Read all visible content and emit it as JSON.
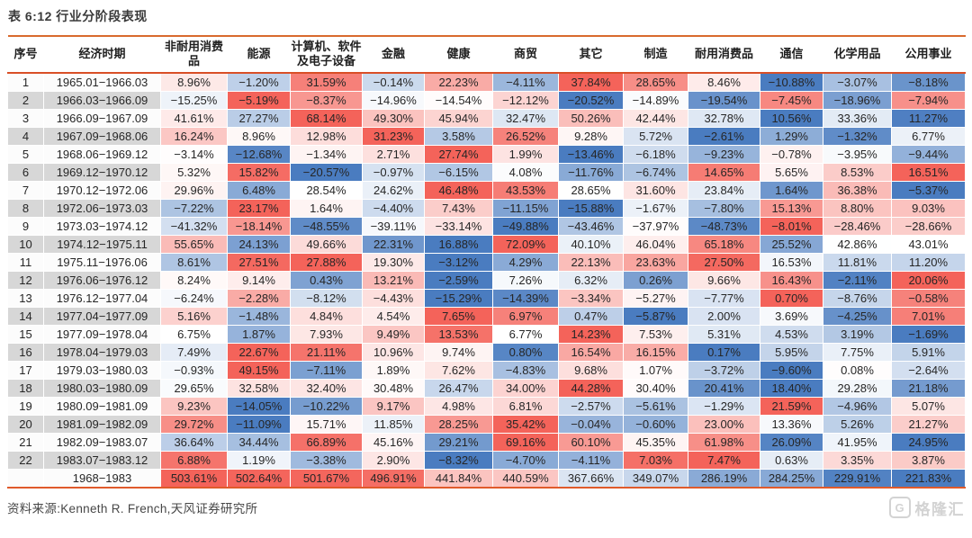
{
  "page_title": "表 6:12 行业分阶段表现",
  "source_note": "资料来源:Kenneth R. French,天风证券研究所",
  "logo_text": "格隆汇",
  "colors": {
    "heat_max_red": "#F4635A",
    "heat_min_blue": "#4A7CC0",
    "heat_mid_white": "#FFFFFF",
    "stripe_gray": "#D7D7D7",
    "rule_orange": "#D96A2E",
    "rule_header_underline": "#D94F27",
    "title_text": "#3A3A3A"
  },
  "chart_data": {
    "type": "heatmap",
    "title": "表 6:12 行业分阶段表现",
    "unit": "%",
    "color_scale": "per-row diverging: row min = blue #4A7CC0, row median = white, row max = red #F4635A",
    "column_headers": [
      "序号",
      "经济时期",
      "非耐用消费品",
      "能源",
      "计算机、软件及电子设备",
      "金融",
      "健康",
      "商贸",
      "其它",
      "制造",
      "耐用消费品",
      "通信",
      "化学用品",
      "公用事业"
    ],
    "industries": [
      "非耐用消费品",
      "能源",
      "计算机、软件及电子设备",
      "金融",
      "健康",
      "商贸",
      "其它",
      "制造",
      "耐用消费品",
      "通信",
      "化学用品",
      "公用事业"
    ],
    "rows": [
      {
        "no": "1",
        "period": "1965.01-1966.03",
        "values": [
          8.96,
          -1.2,
          31.59,
          -0.14,
          22.23,
          -4.11,
          37.84,
          28.65,
          8.46,
          -10.88,
          -3.07,
          -8.18
        ]
      },
      {
        "no": "2",
        "period": "1966.03-1966.09",
        "values": [
          -15.25,
          -5.19,
          -8.37,
          -14.96,
          -14.54,
          -12.12,
          -20.52,
          -14.89,
          -19.54,
          -7.45,
          -18.96,
          -7.94
        ]
      },
      {
        "no": "3",
        "period": "1966.09-1967.09",
        "values": [
          41.61,
          27.27,
          68.14,
          49.3,
          45.94,
          32.47,
          50.26,
          42.44,
          32.78,
          10.56,
          33.36,
          11.27
        ]
      },
      {
        "no": "4",
        "period": "1967.09-1968.06",
        "values": [
          16.24,
          8.96,
          12.98,
          31.23,
          3.58,
          26.52,
          9.28,
          5.72,
          -2.61,
          1.29,
          -1.32,
          6.77
        ]
      },
      {
        "no": "5",
        "period": "1968.06-1969.12",
        "values": [
          -3.14,
          -12.68,
          -1.34,
          2.71,
          27.74,
          1.99,
          -13.46,
          -6.18,
          -9.23,
          -0.78,
          -3.95,
          -9.44
        ]
      },
      {
        "no": "6",
        "period": "1969.12-1970.12",
        "values": [
          5.32,
          15.82,
          -20.57,
          -0.97,
          -6.15,
          4.08,
          -11.76,
          -6.74,
          14.65,
          5.65,
          8.53,
          16.51
        ]
      },
      {
        "no": "7",
        "period": "1970.12-1972.06",
        "values": [
          29.96,
          6.48,
          28.54,
          24.62,
          46.48,
          43.53,
          28.65,
          31.6,
          23.84,
          1.64,
          36.38,
          -5.37
        ]
      },
      {
        "no": "8",
        "period": "1972.06-1973.03",
        "values": [
          -7.22,
          23.17,
          1.64,
          -4.4,
          7.43,
          -11.15,
          -15.88,
          -1.67,
          -7.8,
          15.13,
          8.8,
          9.03
        ]
      },
      {
        "no": "9",
        "period": "1973.03-1974.12",
        "values": [
          -41.32,
          -18.14,
          -48.55,
          -39.11,
          -33.14,
          -49.88,
          -43.46,
          -37.97,
          -48.73,
          -8.01,
          -28.46,
          -28.66
        ]
      },
      {
        "no": "10",
        "period": "1974.12-1975.11",
        "values": [
          55.65,
          24.13,
          49.66,
          22.31,
          16.88,
          72.09,
          40.1,
          46.04,
          65.18,
          25.52,
          42.86,
          43.01
        ]
      },
      {
        "no": "11",
        "period": "1975.11-1976.06",
        "values": [
          8.61,
          27.51,
          27.88,
          19.3,
          -3.12,
          4.29,
          22.13,
          23.63,
          27.5,
          16.53,
          11.81,
          11.2
        ]
      },
      {
        "no": "12",
        "period": "1976.06-1976.12",
        "values": [
          8.24,
          9.14,
          0.43,
          13.21,
          -2.59,
          7.26,
          6.32,
          0.26,
          9.66,
          16.43,
          -2.11,
          20.06
        ]
      },
      {
        "no": "13",
        "period": "1976.12-1977.04",
        "values": [
          -6.24,
          -2.28,
          -8.12,
          -4.43,
          -15.29,
          -14.39,
          -3.34,
          -5.27,
          -7.77,
          0.7,
          -8.76,
          -0.58
        ]
      },
      {
        "no": "14",
        "period": "1977.04-1977.09",
        "values": [
          5.16,
          -1.48,
          4.84,
          4.54,
          7.65,
          6.97,
          0.47,
          -5.87,
          2.0,
          3.69,
          -4.25,
          7.01
        ]
      },
      {
        "no": "15",
        "period": "1977.09-1978.04",
        "values": [
          6.75,
          1.87,
          7.93,
          9.49,
          13.53,
          6.77,
          14.23,
          7.53,
          5.31,
          4.53,
          3.19,
          -1.69
        ]
      },
      {
        "no": "16",
        "period": "1978.04-1979.03",
        "values": [
          7.49,
          22.67,
          21.11,
          10.96,
          9.74,
          0.8,
          16.54,
          16.15,
          0.17,
          5.95,
          7.75,
          5.91
        ]
      },
      {
        "no": "17",
        "period": "1979.03-1980.03",
        "values": [
          -0.93,
          49.15,
          -7.11,
          1.89,
          7.62,
          -4.83,
          9.68,
          1.07,
          -3.72,
          -9.6,
          0.08,
          -2.64
        ]
      },
      {
        "no": "18",
        "period": "1980.03-1980.09",
        "values": [
          29.65,
          32.58,
          32.4,
          30.48,
          26.47,
          34.0,
          44.28,
          30.4,
          20.41,
          18.4,
          29.28,
          21.18
        ]
      },
      {
        "no": "19",
        "period": "1980.09-1981.09",
        "values": [
          9.23,
          -14.05,
          -10.22,
          9.17,
          4.98,
          6.81,
          -2.57,
          -5.61,
          -1.29,
          21.59,
          -4.96,
          5.07
        ]
      },
      {
        "no": "20",
        "period": "1981.09-1982.09",
        "values": [
          29.72,
          -11.09,
          15.71,
          11.85,
          28.25,
          35.42,
          -0.04,
          -0.6,
          23.0,
          13.36,
          5.26,
          21.27
        ]
      },
      {
        "no": "21",
        "period": "1982.09-1983.07",
        "values": [
          36.64,
          34.44,
          66.89,
          45.16,
          29.21,
          69.16,
          60.1,
          45.35,
          61.98,
          26.09,
          41.95,
          24.95
        ]
      },
      {
        "no": "22",
        "period": "1983.07-1983.12",
        "values": [
          6.88,
          1.19,
          -3.38,
          2.9,
          -8.32,
          -4.7,
          -4.11,
          7.03,
          7.47,
          0.63,
          3.35,
          3.87
        ]
      }
    ],
    "summary": {
      "no": "",
      "period": "1968-1983",
      "values": [
        503.61,
        502.64,
        501.67,
        496.91,
        441.84,
        440.59,
        367.66,
        349.07,
        286.19,
        284.25,
        229.91,
        221.83
      ]
    }
  }
}
